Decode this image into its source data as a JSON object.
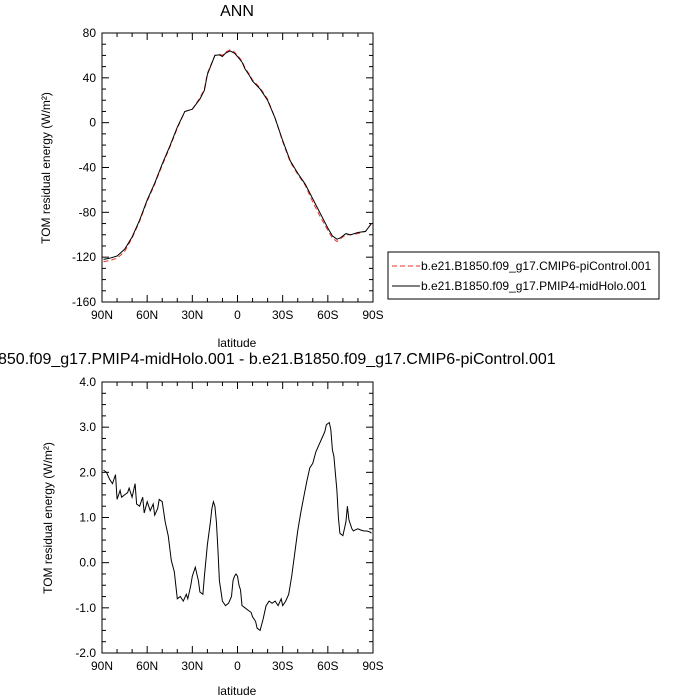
{
  "chart_data": [
    {
      "type": "line",
      "title": "ANN",
      "xlabel": "latitude",
      "ylabel": "TOM residual energy (W/m²)",
      "ylim": [
        -160,
        80
      ],
      "xlim": [
        90,
        -90
      ],
      "yticks": [
        -160,
        -120,
        -80,
        -40,
        0,
        40,
        80
      ],
      "ytick_labels": [
        "-160",
        "-120",
        "-80",
        "-40",
        "0",
        "40",
        "80"
      ],
      "xticks": [
        90,
        60,
        30,
        0,
        -30,
        -60,
        -90
      ],
      "xtick_labels": [
        "90N",
        "60N",
        "30N",
        "0",
        "30S",
        "60S",
        "90S"
      ],
      "grid": false,
      "legend_position": "right",
      "series": [
        {
          "name": "b.e21.B1850.f09_g17.CMIP6-piControl.001",
          "color": "#e8322a",
          "dash": "dashed",
          "x": [
            89,
            85,
            80,
            75,
            70,
            65,
            60,
            55,
            50,
            45,
            40,
            35,
            30,
            25,
            22,
            20,
            15,
            12,
            10,
            8,
            5,
            2,
            0,
            -3,
            -5,
            -8,
            -10,
            -15,
            -20,
            -25,
            -30,
            -35,
            -40,
            -45,
            -50,
            -55,
            -60,
            -63,
            -66,
            -68,
            -70,
            -72,
            -75,
            -80,
            -85,
            -89
          ],
          "y": [
            -124,
            -123,
            -121,
            -115,
            -103,
            -88,
            -70,
            -55,
            -38,
            -22,
            -5,
            10,
            12,
            22,
            30,
            44,
            60,
            61,
            60,
            63,
            65,
            63,
            60,
            55,
            49,
            43,
            38,
            31,
            21,
            4,
            -17,
            -35,
            -46,
            -56,
            -71,
            -84,
            -96,
            -103,
            -106,
            -104,
            -102,
            -100,
            -100,
            -99,
            -97,
            -90
          ]
        },
        {
          "name": "b.e21.B1850.f09_g17.PMIP4-midHolo.001",
          "color": "#000000",
          "dash": "solid",
          "x": [
            89,
            85,
            80,
            75,
            70,
            65,
            60,
            55,
            50,
            45,
            40,
            35,
            30,
            25,
            22,
            20,
            15,
            12,
            10,
            8,
            5,
            2,
            0,
            -3,
            -5,
            -8,
            -10,
            -15,
            -20,
            -25,
            -30,
            -35,
            -40,
            -45,
            -50,
            -55,
            -60,
            -63,
            -66,
            -68,
            -70,
            -72,
            -75,
            -80,
            -85,
            -89
          ],
          "y": [
            -122,
            -121,
            -119,
            -113,
            -102,
            -87,
            -69,
            -54,
            -37,
            -21,
            -4,
            10,
            12,
            21,
            29,
            43,
            60,
            60.5,
            59,
            62,
            64,
            62,
            59,
            54,
            48,
            42,
            37,
            30,
            20,
            4,
            -16,
            -34,
            -45,
            -55,
            -68,
            -81,
            -94,
            -101,
            -104,
            -103,
            -101,
            -99,
            -100,
            -98,
            -97,
            -90
          ]
        }
      ]
    },
    {
      "type": "line",
      "title": "850.f09_g17.PMIP4-midHolo.001 - b.e21.B1850.f09_g17.CMIP6-piControl.001",
      "xlabel": "latitude",
      "ylabel": "TOM residual energy (W/m²)",
      "ylim": [
        -2.0,
        4.0
      ],
      "xlim": [
        90,
        -90
      ],
      "yticks": [
        -2.0,
        -1.0,
        0.0,
        1.0,
        2.0,
        3.0,
        4.0
      ],
      "ytick_labels": [
        "-2.0",
        "-1.0",
        "0.0",
        "1.0",
        "2.0",
        "3.0",
        "4.0"
      ],
      "xticks": [
        90,
        60,
        30,
        0,
        -30,
        -60,
        -90
      ],
      "xtick_labels": [
        "90N",
        "60N",
        "30N",
        "0",
        "30S",
        "60S",
        "90S"
      ],
      "grid": false,
      "series": [
        {
          "name": "",
          "color": "#000000",
          "dash": "solid",
          "x": [
            89,
            87,
            85,
            83,
            81,
            80,
            78,
            77,
            75,
            73,
            72,
            70,
            68,
            67,
            65,
            63,
            62,
            60,
            58,
            56,
            55,
            53,
            52,
            50,
            48,
            46,
            44,
            42,
            40,
            38,
            36,
            34,
            33,
            31,
            30,
            28,
            26,
            25,
            23,
            22,
            20,
            18,
            17,
            16,
            15,
            14,
            13,
            12,
            10,
            8,
            6,
            4,
            3,
            2,
            1,
            0,
            -1,
            -2,
            -3,
            -5,
            -7,
            -9,
            -10,
            -12,
            -13,
            -15,
            -17,
            -19,
            -21,
            -23,
            -25,
            -27,
            -29,
            -30,
            -32,
            -34,
            -36,
            -38,
            -40,
            -42,
            -44,
            -46,
            -48,
            -50,
            -52,
            -54,
            -56,
            -58,
            -59,
            -60,
            -61,
            -62,
            -63,
            -64,
            -66,
            -67,
            -68,
            -70,
            -72,
            -73,
            -74,
            -76,
            -77,
            -78,
            -80,
            -82,
            -84,
            -86,
            -88,
            -89
          ],
          "y": [
            2.05,
            2.0,
            1.85,
            1.75,
            1.95,
            1.4,
            1.6,
            1.45,
            1.5,
            1.55,
            1.65,
            1.45,
            1.75,
            1.3,
            1.25,
            1.45,
            1.1,
            1.35,
            1.15,
            1.3,
            1.05,
            1.2,
            1.4,
            1.35,
            0.9,
            0.6,
            0.05,
            -0.2,
            -0.8,
            -0.75,
            -0.85,
            -0.7,
            -0.8,
            -0.5,
            -0.3,
            -0.1,
            -0.4,
            -0.65,
            -0.7,
            -0.3,
            0.4,
            0.9,
            1.2,
            1.35,
            1.25,
            0.9,
            0.3,
            -0.4,
            -0.85,
            -0.95,
            -0.9,
            -0.75,
            -0.4,
            -0.3,
            -0.25,
            -0.3,
            -0.5,
            -0.6,
            -0.95,
            -1.0,
            -1.05,
            -1.1,
            -1.2,
            -1.3,
            -1.45,
            -1.5,
            -1.25,
            -0.95,
            -0.85,
            -0.9,
            -0.85,
            -0.95,
            -0.8,
            -0.95,
            -0.85,
            -0.7,
            -0.3,
            0.2,
            0.7,
            1.1,
            1.45,
            1.8,
            2.1,
            2.2,
            2.45,
            2.6,
            2.75,
            2.9,
            3.05,
            3.08,
            3.1,
            2.95,
            2.5,
            2.35,
            1.6,
            1.0,
            0.65,
            0.6,
            0.9,
            1.25,
            0.95,
            0.75,
            0.7,
            0.72,
            0.75,
            0.72,
            0.7,
            0.7,
            0.68,
            0.65
          ]
        }
      ]
    }
  ]
}
